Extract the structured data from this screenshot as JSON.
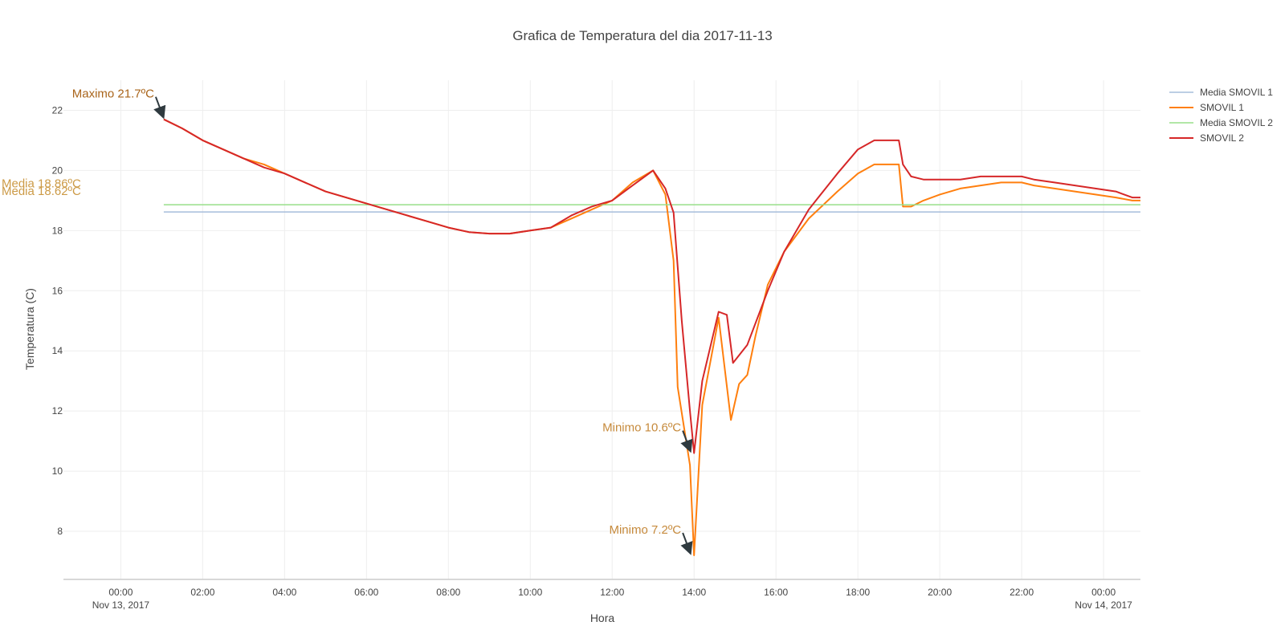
{
  "chart_data": {
    "type": "line",
    "title": "Grafica de Temperatura del dia 2017-11-13",
    "xlabel": "Hora",
    "ylabel": "Temperatura (C)",
    "xlim": [
      -1.4,
      24.9
    ],
    "ylim": [
      6.4,
      23.0
    ],
    "grid": true,
    "x_ticks": [
      {
        "x": 0,
        "label": "00:00",
        "sublabel": "Nov 13, 2017"
      },
      {
        "x": 2,
        "label": "02:00",
        "sublabel": ""
      },
      {
        "x": 4,
        "label": "04:00",
        "sublabel": ""
      },
      {
        "x": 6,
        "label": "06:00",
        "sublabel": ""
      },
      {
        "x": 8,
        "label": "08:00",
        "sublabel": ""
      },
      {
        "x": 10,
        "label": "10:00",
        "sublabel": ""
      },
      {
        "x": 12,
        "label": "12:00",
        "sublabel": ""
      },
      {
        "x": 14,
        "label": "14:00",
        "sublabel": ""
      },
      {
        "x": 16,
        "label": "16:00",
        "sublabel": ""
      },
      {
        "x": 18,
        "label": "18:00",
        "sublabel": ""
      },
      {
        "x": 20,
        "label": "20:00",
        "sublabel": ""
      },
      {
        "x": 22,
        "label": "22:00",
        "sublabel": ""
      },
      {
        "x": 24,
        "label": "00:00",
        "sublabel": "Nov 14, 2017"
      }
    ],
    "y_ticks": [
      8,
      10,
      12,
      14,
      16,
      18,
      20,
      22
    ],
    "legend_position": "top-right",
    "series": [
      {
        "name": "Media SMOVIL 1",
        "kind": "mean",
        "color": "#a6bddb",
        "x": [
          1.05,
          24.9
        ],
        "y": [
          18.62,
          18.62
        ]
      },
      {
        "name": "SMOVIL 1",
        "kind": "data",
        "color": "#ff7f0e",
        "x": [
          1.05,
          1.5,
          2.0,
          2.5,
          3.0,
          3.5,
          4.0,
          4.5,
          5.0,
          5.5,
          6.0,
          6.5,
          7.0,
          7.5,
          8.0,
          8.5,
          9.0,
          9.5,
          10.0,
          10.5,
          11.0,
          11.5,
          12.0,
          12.5,
          13.0,
          13.3,
          13.5,
          13.6,
          13.9,
          14.0,
          14.2,
          14.6,
          14.9,
          15.1,
          15.3,
          15.5,
          15.8,
          16.2,
          16.8,
          17.5,
          18.0,
          18.4,
          19.0,
          19.1,
          19.3,
          19.6,
          20.0,
          20.5,
          21.0,
          21.5,
          22.0,
          22.3,
          22.8,
          23.3,
          23.8,
          24.3,
          24.7,
          24.9
        ],
        "y": [
          21.7,
          21.4,
          21.0,
          20.7,
          20.4,
          20.2,
          19.9,
          19.6,
          19.3,
          19.1,
          18.9,
          18.7,
          18.5,
          18.3,
          18.1,
          17.95,
          17.9,
          17.9,
          18.0,
          18.1,
          18.4,
          18.7,
          19.0,
          19.6,
          20.0,
          19.2,
          17.0,
          12.8,
          10.2,
          7.2,
          12.2,
          15.1,
          11.7,
          12.9,
          13.2,
          14.5,
          16.2,
          17.3,
          18.4,
          19.3,
          19.9,
          20.2,
          20.2,
          18.8,
          18.8,
          19.0,
          19.2,
          19.4,
          19.5,
          19.6,
          19.6,
          19.5,
          19.4,
          19.3,
          19.2,
          19.1,
          19.0,
          19.0
        ]
      },
      {
        "name": "Media SMOVIL 2",
        "kind": "mean",
        "color": "#98df8a",
        "x": [
          1.05,
          24.9
        ],
        "y": [
          18.86,
          18.86
        ]
      },
      {
        "name": "SMOVIL 2",
        "kind": "data",
        "color": "#d62728",
        "x": [
          1.05,
          1.5,
          2.0,
          2.5,
          3.0,
          3.5,
          4.0,
          4.5,
          5.0,
          5.5,
          6.0,
          6.5,
          7.0,
          7.5,
          8.0,
          8.5,
          9.0,
          9.5,
          10.0,
          10.5,
          11.0,
          11.5,
          12.0,
          12.5,
          13.0,
          13.3,
          13.5,
          13.7,
          13.9,
          14.0,
          14.2,
          14.6,
          14.8,
          14.95,
          15.3,
          15.8,
          16.2,
          16.8,
          17.5,
          18.0,
          18.4,
          19.0,
          19.1,
          19.3,
          19.6,
          20.0,
          20.5,
          21.0,
          21.5,
          22.0,
          22.3,
          22.8,
          23.3,
          23.8,
          24.3,
          24.7,
          24.9
        ],
        "y": [
          21.7,
          21.4,
          21.0,
          20.7,
          20.4,
          20.1,
          19.9,
          19.6,
          19.3,
          19.1,
          18.9,
          18.7,
          18.5,
          18.3,
          18.1,
          17.95,
          17.9,
          17.9,
          18.0,
          18.1,
          18.5,
          18.8,
          19.0,
          19.5,
          20.0,
          19.4,
          18.6,
          15.0,
          12.0,
          10.6,
          13.0,
          15.3,
          15.2,
          13.6,
          14.2,
          16.0,
          17.3,
          18.7,
          19.9,
          20.7,
          21.0,
          21.0,
          20.2,
          19.8,
          19.7,
          19.7,
          19.7,
          19.8,
          19.8,
          19.8,
          19.7,
          19.6,
          19.5,
          19.4,
          19.3,
          19.1,
          19.1
        ]
      }
    ],
    "annotations": [
      {
        "text": "Maximo 21.7ºC",
        "x": 1.05,
        "y": 21.7,
        "color": "#a9641a",
        "arrow": true
      },
      {
        "text": "Media 18.86ºC",
        "x": -1.4,
        "y": 19.6,
        "color": "#cc9a46",
        "arrow": false
      },
      {
        "text": "Media 18.62ºC",
        "x": -1.4,
        "y": 19.35,
        "color": "#cc9a46",
        "arrow": false
      },
      {
        "text": "Minimo 10.6ºC",
        "x": 13.92,
        "y": 10.6,
        "color": "#c68a3c",
        "arrow": true
      },
      {
        "text": "Minimo 7.2ºC",
        "x": 13.92,
        "y": 7.2,
        "color": "#c68a3c",
        "arrow": true
      }
    ]
  }
}
